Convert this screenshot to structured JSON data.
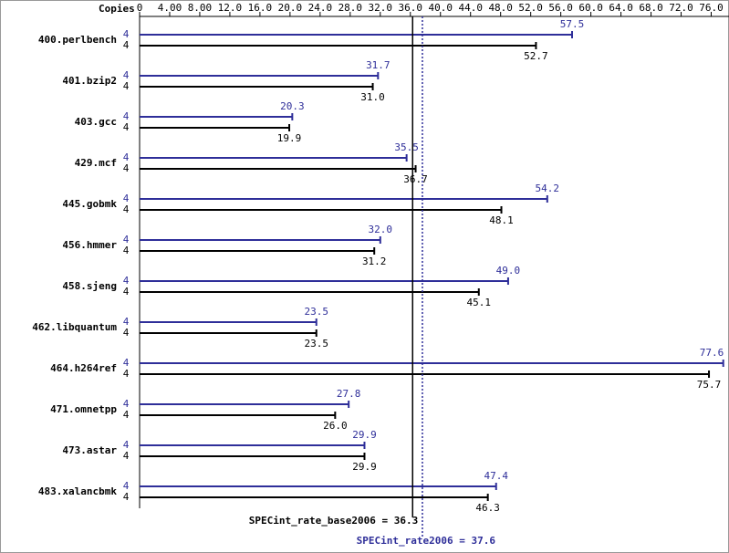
{
  "chart_data": {
    "type": "hbar-pair",
    "copies_label": "Copies",
    "categories": [
      "400.perlbench",
      "401.bzip2",
      "403.gcc",
      "429.mcf",
      "445.gobmk",
      "456.hmmer",
      "458.sjeng",
      "462.libquantum",
      "464.h264ref",
      "471.omnetpp",
      "473.astar",
      "483.xalancbmk"
    ],
    "series": [
      {
        "color": "#2e2e99",
        "copies": [
          4,
          4,
          4,
          4,
          4,
          4,
          4,
          4,
          4,
          4,
          4,
          4
        ],
        "values": [
          57.5,
          31.7,
          20.3,
          35.5,
          54.2,
          32.0,
          49.0,
          23.5,
          77.6,
          27.8,
          29.9,
          47.4
        ],
        "value_labels": [
          "57.5",
          "31.7",
          "20.3",
          "35.5",
          "54.2",
          "32.0",
          "49.0",
          "23.5",
          "77.6",
          "27.8",
          "29.9",
          "47.4"
        ],
        "label_side": "above"
      },
      {
        "color": "#000000",
        "copies": [
          4,
          4,
          4,
          4,
          4,
          4,
          4,
          4,
          4,
          4,
          4,
          4
        ],
        "values": [
          52.7,
          31.0,
          19.9,
          36.7,
          48.1,
          31.2,
          45.1,
          23.5,
          75.7,
          26.0,
          29.9,
          46.3
        ],
        "value_labels": [
          "52.7",
          "31.0",
          "19.9",
          "36.7",
          "48.1",
          "31.2",
          "45.1",
          "23.5",
          "75.7",
          "26.0",
          "29.9",
          "46.3"
        ],
        "label_side": "below"
      }
    ],
    "xlim": [
      0,
      78
    ],
    "xticks": [
      0,
      {
        "value": 4,
        "label": "4.00"
      },
      {
        "value": 8,
        "label": "8.00"
      },
      {
        "value": 12,
        "label": "12.0"
      },
      {
        "value": 16,
        "label": "16.0"
      },
      {
        "value": 20,
        "label": "20.0"
      },
      {
        "value": 24,
        "label": "24.0"
      },
      {
        "value": 28,
        "label": "28.0"
      },
      {
        "value": 32,
        "label": "32.0"
      },
      {
        "value": 36,
        "label": "36.0"
      },
      {
        "value": 40,
        "label": "40.0"
      },
      {
        "value": 44,
        "label": "44.0"
      },
      {
        "value": 48,
        "label": "48.0"
      },
      {
        "value": 52,
        "label": "52.0"
      },
      {
        "value": 56,
        "label": "56.0"
      },
      {
        "value": 60,
        "label": "60.0"
      },
      {
        "value": 64,
        "label": "64.0"
      },
      {
        "value": 68,
        "label": "68.0"
      },
      {
        "value": 72,
        "label": "72.0"
      },
      {
        "value": 76,
        "label": "76.0"
      }
    ],
    "reference_lines": [
      {
        "label": "SPECint_rate_base2006 = 36.3",
        "value": 36.3,
        "color": "#000000",
        "style": "solid"
      },
      {
        "label": "SPECint_rate2006 = 37.6",
        "value": 37.6,
        "color": "#2e2e99",
        "style": "dotted"
      }
    ]
  }
}
